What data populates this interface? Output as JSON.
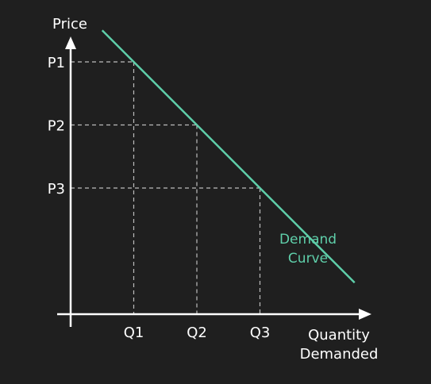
{
  "chart_data": {
    "type": "line",
    "title": "",
    "ylabel": "Price",
    "xlabel_lines": [
      "Quantity",
      "Demanded"
    ],
    "y_ticks": [
      "P1",
      "P2",
      "P3"
    ],
    "x_ticks": [
      "Q1",
      "Q2",
      "Q3"
    ],
    "series": [
      {
        "name_lines": [
          "Demand",
          "Curve"
        ],
        "x": [
          0.5,
          4.5
        ],
        "y": [
          4.5,
          0.5
        ]
      }
    ],
    "reference_points": [
      {
        "x_label": "Q1",
        "y_label": "P1",
        "x": 1.0,
        "y": 4.0
      },
      {
        "x_label": "Q2",
        "y_label": "P2",
        "x": 2.0,
        "y": 3.0
      },
      {
        "x_label": "Q3",
        "y_label": "P3",
        "x": 3.0,
        "y": 2.0
      }
    ],
    "xlim": [
      0,
      5
    ],
    "ylim": [
      0,
      6
    ],
    "grid": false,
    "colors": {
      "background": "#1f1f1f",
      "axis": "#ffffff",
      "curve": "#5fcfaa",
      "guide": "#bdbdbd",
      "text": "#ffffff",
      "curve_label": "#5fcfaa"
    }
  }
}
